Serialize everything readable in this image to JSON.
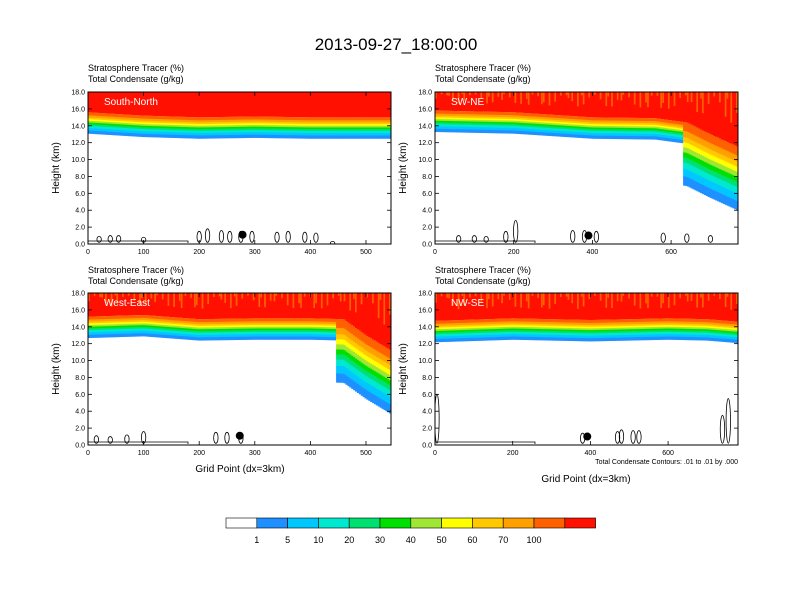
{
  "title": "2013-09-27_18:00:00",
  "palette": [
    "#ffffff",
    "#1e90ff",
    "#00c8ff",
    "#00e8d0",
    "#00e070",
    "#00e000",
    "#a0e632",
    "#ffff00",
    "#ffc800",
    "#ffa000",
    "#ff6000",
    "#ff1000"
  ],
  "colorbar_labels": [
    "1",
    "5",
    "10",
    "20",
    "30",
    "40",
    "50",
    "60",
    "70",
    "100"
  ],
  "footnote": "Total Condensate Contours: .01 to .01 by .000",
  "chart_data": [
    {
      "type": "heatmap",
      "panel_label": "South-North",
      "label1": "Stratosphere Tracer   (%)",
      "label2": "Total Condensate   (g/kg)",
      "ylabel": "Height (km)",
      "xlabel": "",
      "xlim": [
        0,
        545
      ],
      "ylim": [
        0,
        18
      ],
      "xticks": [
        "0",
        "100",
        "200",
        "300",
        "400",
        "500"
      ],
      "yticks": [
        "0.0",
        "2.0",
        "4.0",
        "6.0",
        "8.0",
        "10.0",
        "12.0",
        "14.0",
        "16.0",
        "18.0"
      ],
      "tropopause_km": [
        [
          0,
          15.6
        ],
        [
          100,
          15.2
        ],
        [
          200,
          15.0
        ],
        [
          300,
          15.1
        ],
        [
          400,
          15.0
        ],
        [
          545,
          15.0
        ]
      ],
      "drop": null,
      "striped_top": false,
      "marker": [
        278,
        1.1
      ],
      "clouds": [
        [
          20,
          0.9
        ],
        [
          40,
          1.0
        ],
        [
          55,
          1.0
        ],
        [
          100,
          0.8
        ],
        [
          200,
          1.5
        ],
        [
          215,
          1.8
        ],
        [
          240,
          1.6
        ],
        [
          255,
          1.5
        ],
        [
          275,
          1.5
        ],
        [
          295,
          1.5
        ],
        [
          340,
          1.4
        ],
        [
          360,
          1.5
        ],
        [
          390,
          1.4
        ],
        [
          410,
          1.3
        ],
        [
          440,
          0.3
        ]
      ]
    },
    {
      "type": "heatmap",
      "panel_label": "SW-NE",
      "label1": "Stratosphere Tracer   (%)",
      "label2": "Total Condensate   (g/kg)",
      "ylabel": "Height (km)",
      "xlabel": "",
      "xlim": [
        0,
        770
      ],
      "ylim": [
        0,
        18
      ],
      "xticks": [
        "0",
        "200",
        "400",
        "600"
      ],
      "yticks": [
        "0.0",
        "2.0",
        "4.0",
        "6.0",
        "8.0",
        "10.0",
        "12.0",
        "14.0",
        "16.0",
        "18.0"
      ],
      "tropopause_km": [
        [
          0,
          15.8
        ],
        [
          200,
          15.6
        ],
        [
          400,
          15.0
        ],
        [
          560,
          14.9
        ],
        [
          640,
          14.4
        ],
        [
          700,
          13.0
        ],
        [
          770,
          11.5
        ]
      ],
      "drop": "right",
      "striped_top": true,
      "marker": [
        390,
        1.0
      ],
      "clouds": [
        [
          60,
          1.0
        ],
        [
          100,
          1.0
        ],
        [
          130,
          0.9
        ],
        [
          180,
          1.5
        ],
        [
          205,
          2.8
        ],
        [
          350,
          1.6
        ],
        [
          380,
          1.6
        ],
        [
          410,
          1.5
        ],
        [
          580,
          1.3
        ],
        [
          640,
          1.2
        ],
        [
          700,
          1.0
        ]
      ]
    },
    {
      "type": "heatmap",
      "panel_label": "West-East",
      "label1": "Stratosphere Tracer   (%)",
      "label2": "Total Condensate   (g/kg)",
      "ylabel": "Height (km)",
      "xlabel": "Grid Point (dx=3km)",
      "xlim": [
        0,
        545
      ],
      "ylim": [
        0,
        18
      ],
      "xticks": [
        "0",
        "100",
        "200",
        "300",
        "400",
        "500"
      ],
      "yticks": [
        "0.0",
        "2.0",
        "4.0",
        "6.0",
        "8.0",
        "10.0",
        "12.0",
        "14.0",
        "16.0",
        "18.0"
      ],
      "tropopause_km": [
        [
          0,
          15.2
        ],
        [
          100,
          15.4
        ],
        [
          200,
          14.9
        ],
        [
          300,
          15.0
        ],
        [
          400,
          15.0
        ],
        [
          460,
          14.9
        ],
        [
          500,
          13.0
        ],
        [
          545,
          11.2
        ]
      ],
      "drop": "right",
      "striped_top": true,
      "marker": [
        273,
        1.1
      ],
      "clouds": [
        [
          15,
          1.1
        ],
        [
          40,
          1.0
        ],
        [
          70,
          1.2
        ],
        [
          100,
          1.6
        ],
        [
          230,
          1.5
        ],
        [
          250,
          1.5
        ],
        [
          275,
          1.4
        ]
      ]
    },
    {
      "type": "heatmap",
      "panel_label": "NW-SE",
      "label1": "Stratosphere Tracer   (%)",
      "label2": "Total Condensate   (g/kg)",
      "ylabel": "Height (km)",
      "xlabel": "Grid Point (dx=3km)",
      "xlim": [
        0,
        780
      ],
      "ylim": [
        0,
        18
      ],
      "xticks": [
        "0",
        "200",
        "400",
        "600"
      ],
      "yticks": [
        "0.0",
        "2.0",
        "4.0",
        "6.0",
        "8.0",
        "10.0",
        "12.0",
        "14.0",
        "16.0",
        "18.0"
      ],
      "tropopause_km": [
        [
          0,
          14.7
        ],
        [
          200,
          15.0
        ],
        [
          400,
          14.8
        ],
        [
          600,
          15.0
        ],
        [
          700,
          14.9
        ],
        [
          780,
          14.6
        ]
      ],
      "drop": null,
      "striped_top": true,
      "marker": [
        392,
        1.0
      ],
      "clouds": [
        [
          5,
          6.0
        ],
        [
          380,
          1.4
        ],
        [
          470,
          1.6
        ],
        [
          480,
          1.8
        ],
        [
          510,
          1.7
        ],
        [
          525,
          1.7
        ],
        [
          740,
          3.5
        ],
        [
          755,
          5.5
        ]
      ]
    }
  ]
}
